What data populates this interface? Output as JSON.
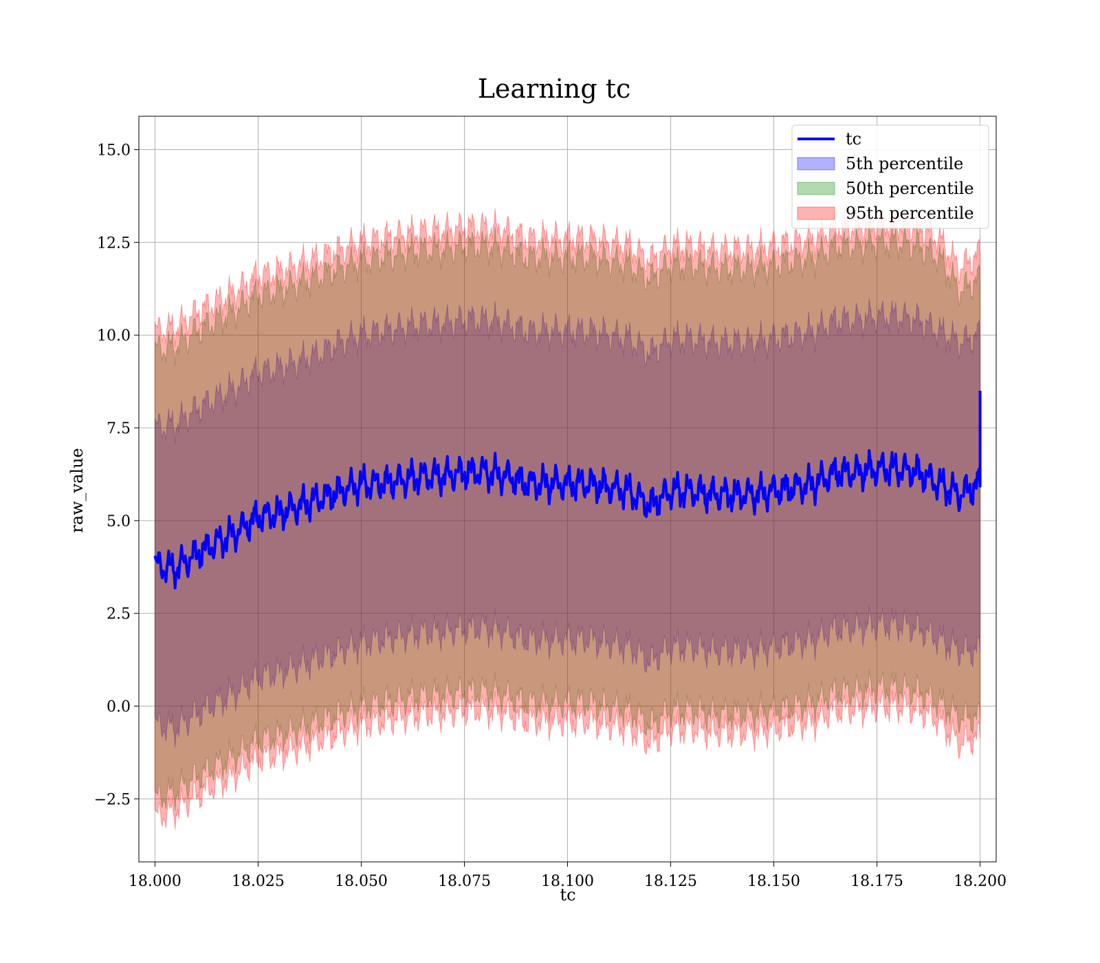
{
  "chart_data": {
    "type": "area",
    "title": "Learning tc",
    "xlabel": "tc",
    "ylabel": "raw_value",
    "xlim": [
      17.9961,
      18.2039
    ],
    "ylim": [
      -4.2,
      15.9
    ],
    "x_ticks": [
      "18.000",
      "18.025",
      "18.050",
      "18.075",
      "18.100",
      "18.125",
      "18.150",
      "18.175",
      "18.200"
    ],
    "x_tick_values": [
      18.0,
      18.025,
      18.05,
      18.075,
      18.1,
      18.125,
      18.15,
      18.175,
      18.2
    ],
    "y_ticks": [
      "−2.5",
      "0.0",
      "2.5",
      "5.0",
      "7.5",
      "10.0",
      "12.5",
      "15.0"
    ],
    "y_tick_values": [
      -2.5,
      0.0,
      2.5,
      5.0,
      7.5,
      10.0,
      12.5,
      15.0
    ],
    "grid": true,
    "legend_position": "top-right",
    "x": [
      18.0,
      18.005,
      18.01,
      18.015,
      18.02,
      18.025,
      18.03,
      18.035,
      18.04,
      18.045,
      18.05,
      18.055,
      18.06,
      18.065,
      18.07,
      18.075,
      18.08,
      18.085,
      18.09,
      18.095,
      18.1,
      18.105,
      18.11,
      18.115,
      18.12,
      18.125,
      18.13,
      18.135,
      18.14,
      18.145,
      18.15,
      18.155,
      18.16,
      18.165,
      18.17,
      18.175,
      18.18,
      18.185,
      18.19,
      18.195,
      18.2
    ],
    "series": [
      {
        "name": "tc",
        "type": "line",
        "color": "#0000ff",
        "values": [
          3.8,
          3.7,
          4.1,
          4.4,
          4.7,
          5.1,
          5.2,
          5.4,
          5.6,
          5.8,
          6.0,
          6.0,
          6.1,
          6.2,
          6.2,
          6.3,
          6.3,
          6.2,
          6.0,
          6.0,
          6.0,
          6.0,
          5.9,
          5.8,
          5.4,
          5.8,
          5.8,
          5.7,
          5.7,
          5.7,
          5.8,
          5.9,
          6.0,
          6.3,
          6.3,
          6.4,
          6.4,
          6.3,
          6.0,
          5.7,
          6.0
        ],
        "end_spike": 8.5
      },
      {
        "name": "5th percentile",
        "type": "band",
        "color": "#0000ff",
        "fill_opacity": 0.3,
        "lower": [
          -0.5,
          -0.6,
          -0.2,
          0.1,
          0.4,
          0.8,
          0.9,
          1.1,
          1.3,
          1.5,
          1.7,
          1.8,
          1.9,
          2.0,
          2.0,
          2.1,
          2.1,
          2.0,
          1.8,
          1.8,
          1.8,
          1.8,
          1.7,
          1.6,
          1.2,
          1.6,
          1.6,
          1.5,
          1.5,
          1.5,
          1.6,
          1.7,
          1.8,
          2.1,
          2.1,
          2.2,
          2.2,
          2.1,
          1.8,
          1.5,
          1.5
        ],
        "upper": [
          7.5,
          7.6,
          8.0,
          8.3,
          8.6,
          9.0,
          9.1,
          9.3,
          9.5,
          9.8,
          10.0,
          10.1,
          10.2,
          10.3,
          10.3,
          10.4,
          10.4,
          10.3,
          10.1,
          10.1,
          10.1,
          10.1,
          10.0,
          9.9,
          9.5,
          9.9,
          9.9,
          9.8,
          9.8,
          9.8,
          9.9,
          10.0,
          10.1,
          10.4,
          10.4,
          10.5,
          10.5,
          10.4,
          10.1,
          9.8,
          10.0
        ]
      },
      {
        "name": "50th percentile",
        "type": "band",
        "color": "#008000",
        "fill_opacity": 0.3,
        "lower": [
          -2.5,
          -2.3,
          -1.9,
          -1.6,
          -1.3,
          -0.9,
          -0.8,
          -0.6,
          -0.4,
          -0.2,
          0.0,
          0.1,
          0.2,
          0.3,
          0.3,
          0.4,
          0.4,
          0.3,
          0.1,
          0.1,
          0.1,
          0.1,
          0.0,
          -0.1,
          -0.5,
          -0.1,
          -0.1,
          -0.2,
          -0.2,
          -0.2,
          -0.1,
          0.0,
          0.1,
          0.4,
          0.4,
          0.5,
          0.5,
          0.4,
          0.1,
          -0.3,
          -0.3
        ],
        "upper": [
          9.6,
          9.7,
          10.1,
          10.4,
          10.7,
          11.1,
          11.2,
          11.4,
          11.6,
          11.8,
          12.0,
          12.1,
          12.2,
          12.3,
          12.3,
          12.4,
          12.4,
          12.3,
          12.1,
          12.1,
          12.1,
          12.1,
          12.0,
          11.9,
          11.5,
          11.9,
          11.9,
          11.8,
          11.8,
          11.8,
          11.9,
          12.0,
          12.1,
          12.4,
          12.4,
          12.5,
          12.5,
          12.4,
          12.1,
          11.2,
          11.5
        ]
      },
      {
        "name": "95th percentile",
        "type": "band",
        "color": "#ff0000",
        "fill_opacity": 0.3,
        "lower": [
          -3.0,
          -2.8,
          -2.4,
          -2.1,
          -1.8,
          -1.4,
          -1.3,
          -1.1,
          -0.9,
          -0.7,
          -0.5,
          -0.4,
          -0.3,
          -0.2,
          -0.2,
          -0.1,
          -0.1,
          -0.2,
          -0.4,
          -0.4,
          -0.4,
          -0.4,
          -0.5,
          -0.6,
          -1.0,
          -0.6,
          -0.6,
          -0.7,
          -0.7,
          -0.7,
          -0.6,
          -0.5,
          -0.4,
          -0.1,
          -0.1,
          0.0,
          0.0,
          -0.1,
          -0.4,
          -1.0,
          -0.8
        ],
        "upper": [
          10.1,
          10.2,
          10.6,
          10.9,
          11.2,
          11.6,
          11.7,
          11.9,
          12.1,
          12.3,
          12.5,
          12.6,
          12.7,
          12.8,
          12.8,
          12.9,
          12.9,
          12.8,
          12.6,
          12.6,
          12.6,
          12.6,
          12.5,
          12.4,
          12.0,
          12.4,
          12.4,
          12.3,
          12.3,
          12.3,
          12.4,
          12.5,
          12.6,
          12.9,
          12.9,
          13.0,
          13.0,
          12.9,
          12.6,
          11.8,
          12.2
        ]
      }
    ]
  }
}
